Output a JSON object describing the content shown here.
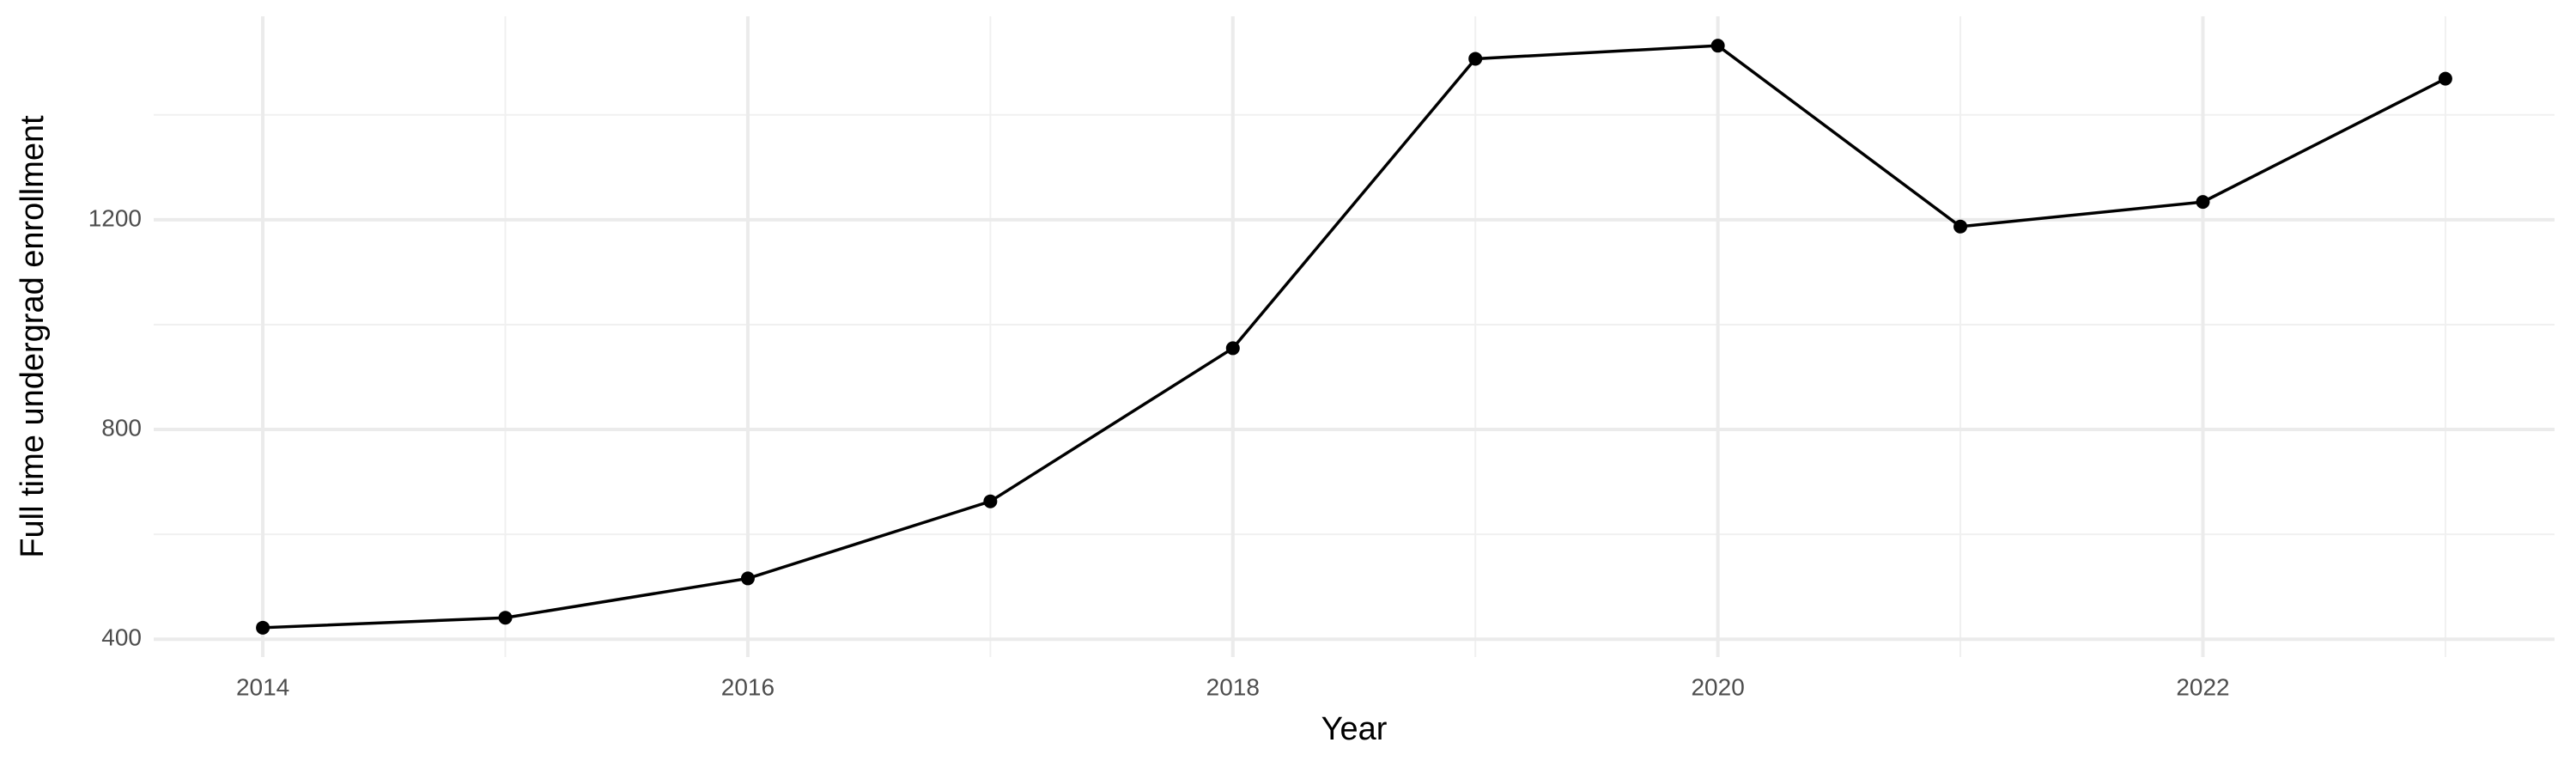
{
  "chart_data": {
    "type": "line",
    "x_label": "Year",
    "y_label": "Full time undergrad enrollment",
    "x": [
      2014,
      2015,
      2016,
      2017,
      2018,
      2019,
      2020,
      2021,
      2022,
      2023
    ],
    "series": [
      {
        "color": "#000000",
        "values": [
          422,
          441,
          516,
          663,
          955,
          1507,
          1532,
          1187,
          1234,
          1469
        ]
      }
    ],
    "xlim": [
      2013.55,
      2023.45
    ],
    "xticks": [
      2014,
      2016,
      2018,
      2020,
      2022
    ],
    "xticks_minor": [
      2015,
      2017,
      2019,
      2021,
      2023
    ],
    "ylim": [
      366,
      1588
    ],
    "yticks": [
      400,
      800,
      1200
    ],
    "yticks_minor": [
      600,
      1000,
      1400
    ],
    "grid": true
  }
}
